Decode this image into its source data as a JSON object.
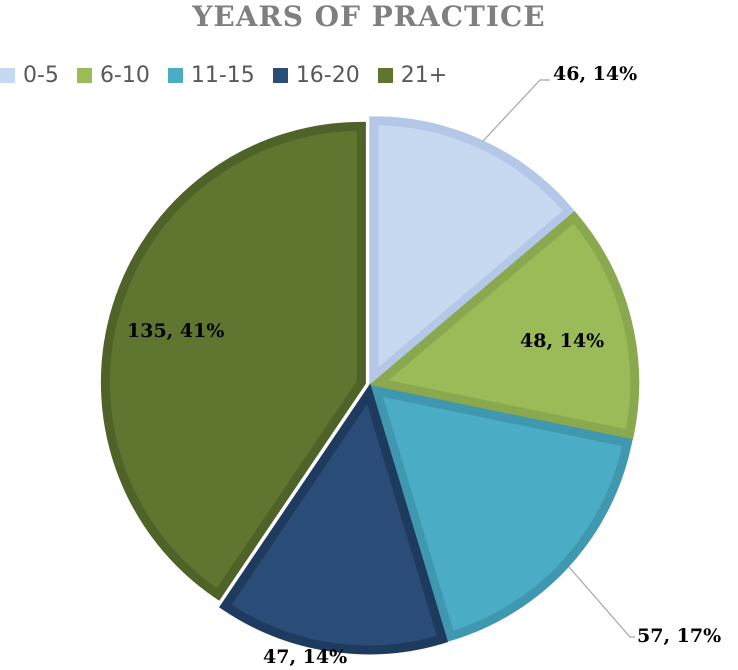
{
  "chart_data": {
    "type": "pie",
    "title": "YEARS OF PRACTICE",
    "categories": [
      "0-5",
      "6-10",
      "11-15",
      "16-20",
      "21+"
    ],
    "values": [
      46,
      48,
      57,
      47,
      135
    ],
    "percent_labels": [
      "14%",
      "14%",
      "17%",
      "14%",
      "41%"
    ],
    "data_labels": [
      "46, 14%",
      "48, 14%",
      "57, 17%",
      "47, 14%",
      "135, 41%"
    ],
    "colors": [
      "#c6d9f1",
      "#9bbb59",
      "#4bacc6",
      "#2b4c76",
      "#5f7530"
    ],
    "border_colors": [
      "#b4c7e7",
      "#8aa84e",
      "#3f98b0",
      "#1f3a5f",
      "#4f6228"
    ],
    "legend_position": "top-left",
    "exploded": true
  }
}
